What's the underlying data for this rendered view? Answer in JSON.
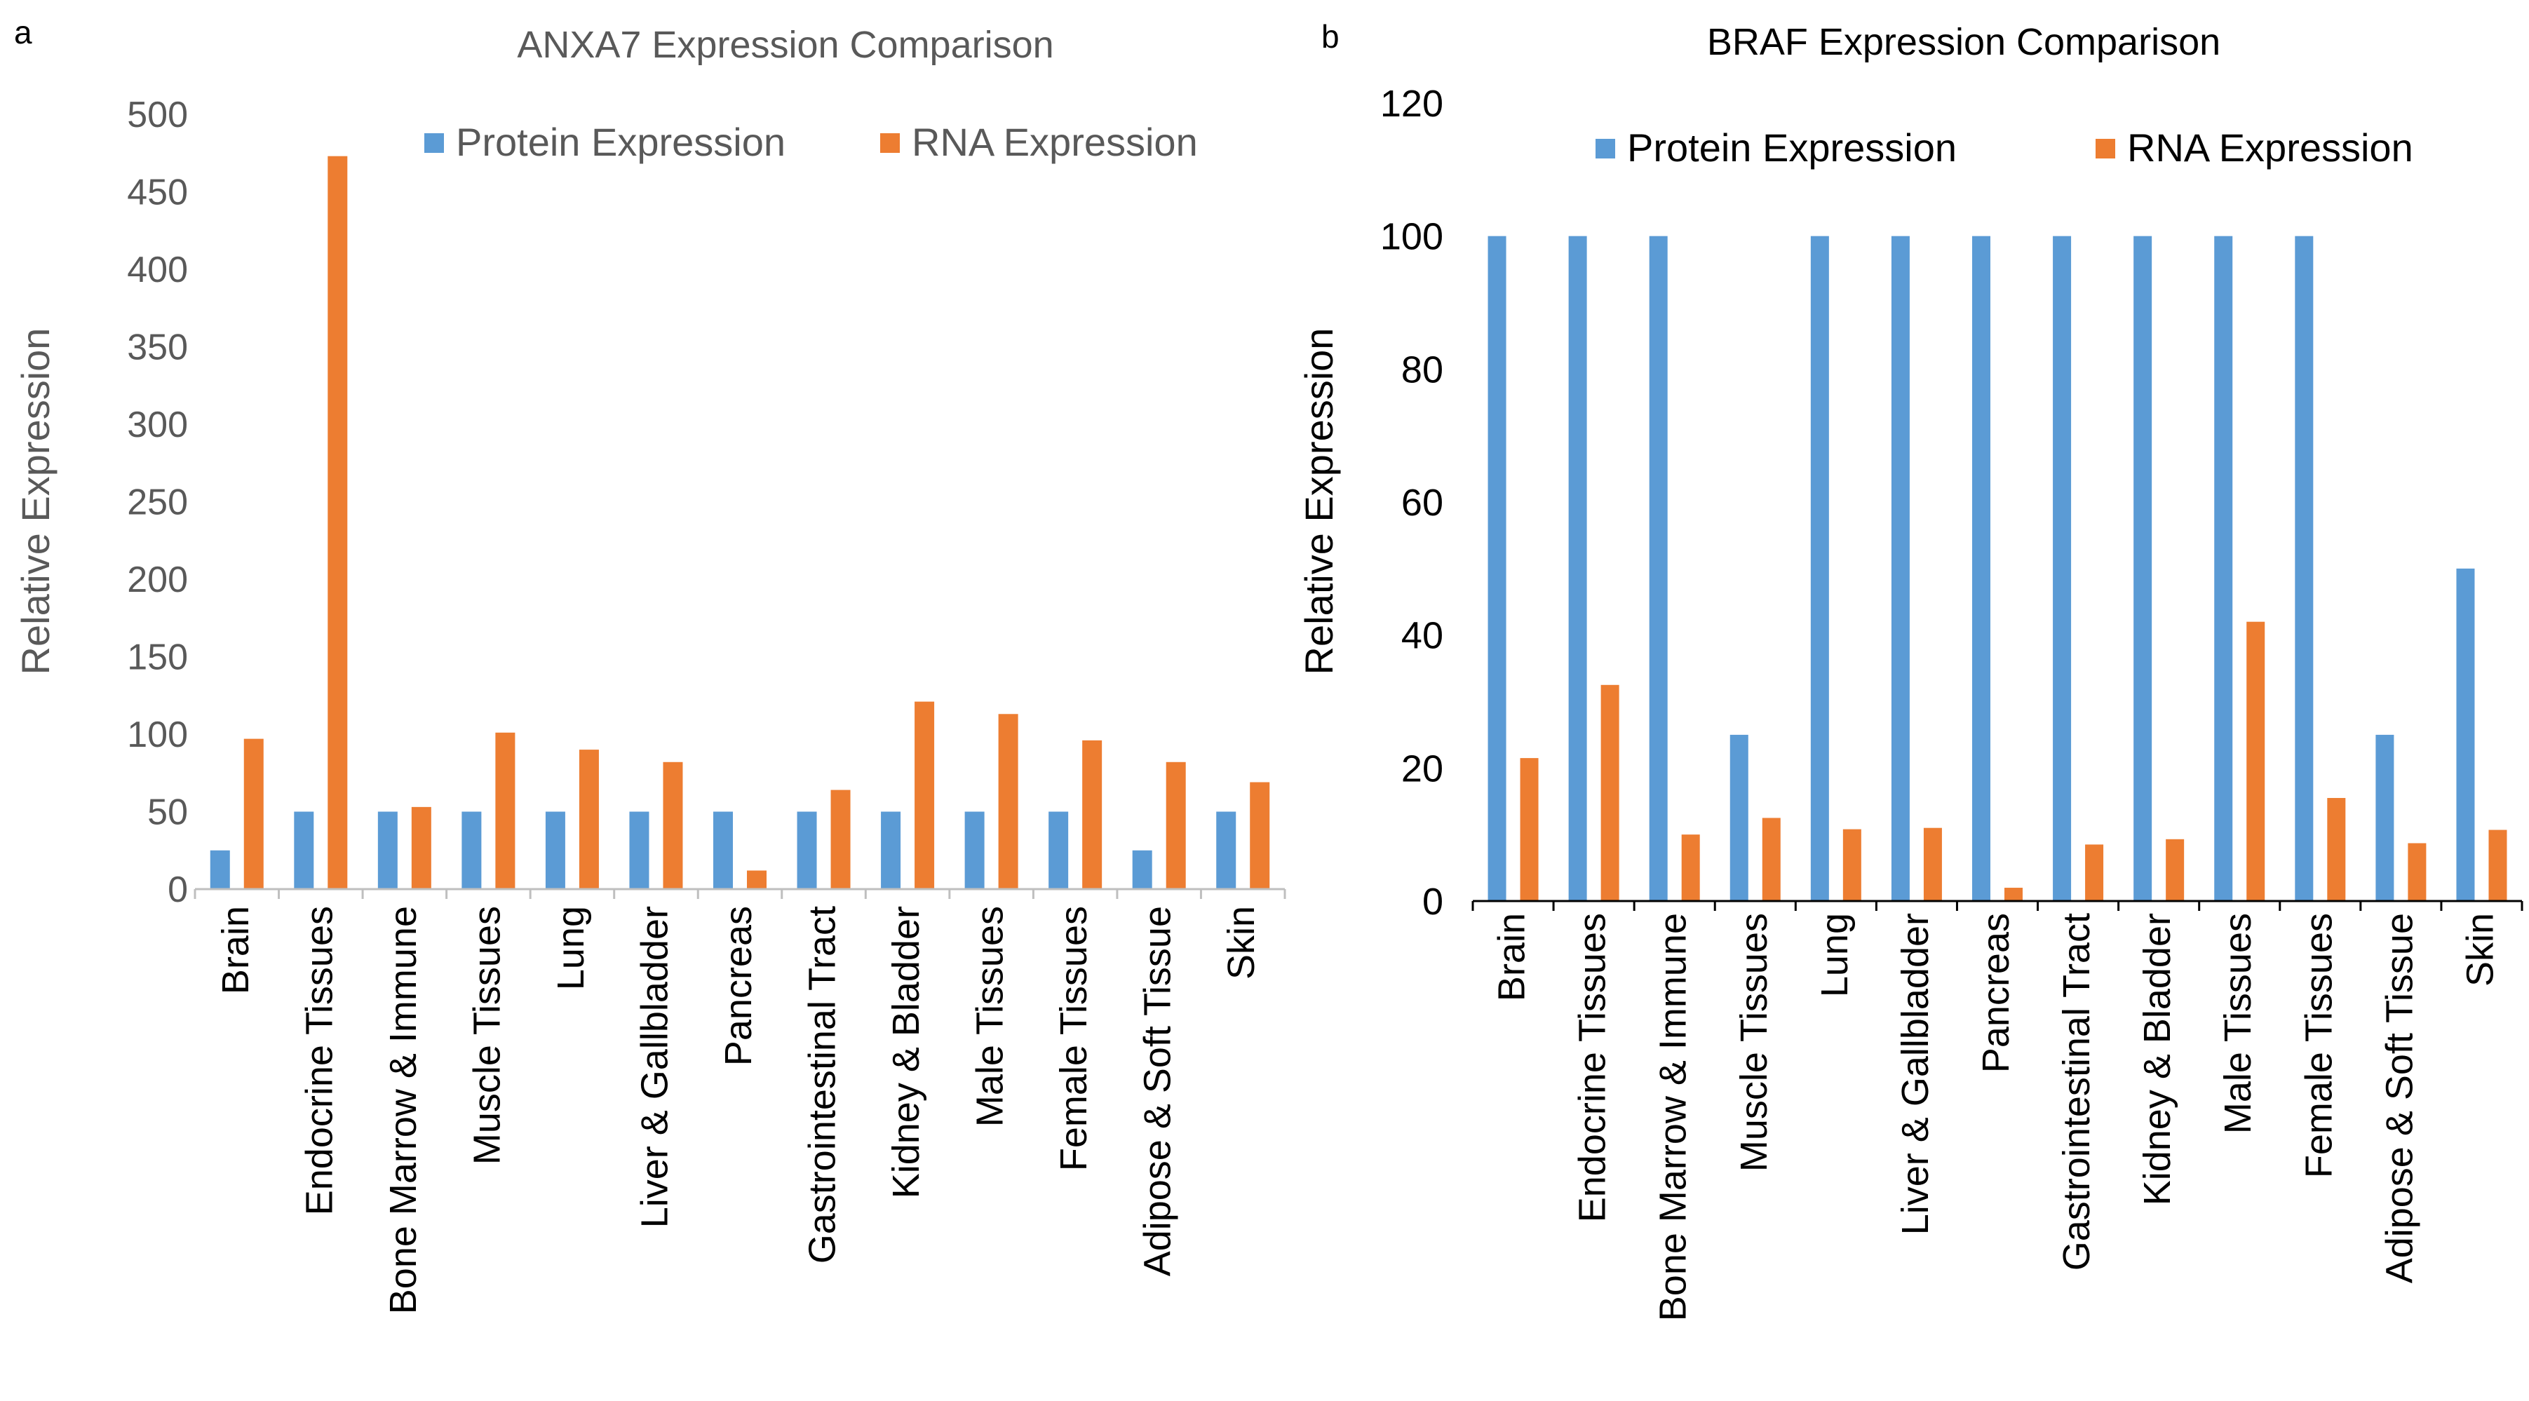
{
  "panels": [
    {
      "label": "a"
    },
    {
      "label": "b"
    }
  ],
  "chart_data": [
    {
      "type": "bar",
      "title": "ANXA7 Expression Comparison",
      "xlabel": "",
      "ylabel": "Relative Expression",
      "ylim": [
        0,
        500
      ],
      "yticks": [
        0,
        50,
        100,
        150,
        200,
        250,
        300,
        350,
        400,
        450,
        500
      ],
      "legend_position": "top",
      "categories": [
        "Brain",
        "Endocrine Tissues",
        "Bone Marrow & Immune",
        "Muscle Tissues",
        "Lung",
        "Liver & Gallbladder",
        "Pancreas",
        "Gastrointestinal Tract",
        "Kidney &  Bladder",
        "Male Tissues",
        "Female Tissues",
        "Adipose & Soft Tissue",
        "Skin"
      ],
      "series": [
        {
          "name": "Protein Expression",
          "color": "#5b9bd5",
          "values": [
            25,
            50,
            50,
            50,
            50,
            50,
            50,
            50,
            50,
            50,
            50,
            25,
            50
          ]
        },
        {
          "name": "RNA Expression",
          "color": "#ed7d31",
          "values": [
            97,
            473,
            53,
            101,
            90,
            82,
            12,
            64,
            121,
            113,
            96,
            82,
            69
          ]
        }
      ]
    },
    {
      "type": "bar",
      "title": "BRAF Expression Comparison",
      "xlabel": "",
      "ylabel": "Relative Expression",
      "ylim": [
        0,
        120
      ],
      "yticks": [
        0,
        20,
        40,
        60,
        80,
        100,
        120
      ],
      "legend_position": "top",
      "categories": [
        "Brain",
        "Endocrine Tissues",
        "Bone Marrow & Immune",
        "Muscle Tissues",
        "Lung",
        "Liver & Gallbladder",
        "Pancreas",
        "Gastrointestinal Tract",
        "Kidney &  Bladder",
        "Male Tissues",
        "Female Tissues",
        "Adipose & Soft Tissue",
        "Skin"
      ],
      "series": [
        {
          "name": "Protein Expression",
          "color": "#5b9bd5",
          "values": [
            100,
            100,
            100,
            25,
            100,
            100,
            100,
            100,
            100,
            100,
            100,
            25,
            50
          ]
        },
        {
          "name": "RNA Expression",
          "color": "#ed7d31",
          "values": [
            21.5,
            32.5,
            10,
            12.5,
            10.8,
            11,
            2,
            8.5,
            9.3,
            42,
            15.5,
            8.7,
            10.7
          ]
        }
      ]
    }
  ]
}
